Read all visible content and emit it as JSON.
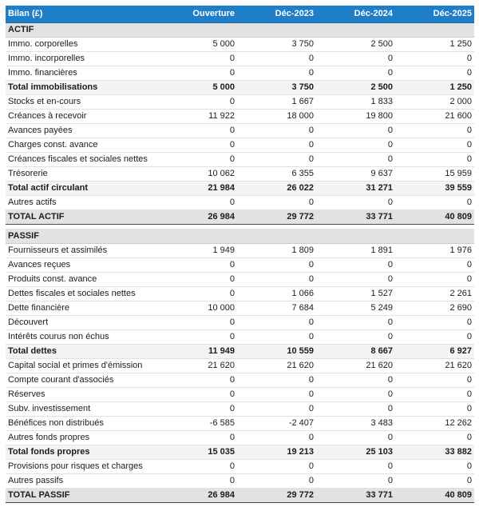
{
  "chart_data": {
    "type": "table",
    "title": "Bilan (£)",
    "currency": "£",
    "columns": [
      "Ouverture",
      "Déc-2023",
      "Déc-2024",
      "Déc-2025"
    ],
    "colors": {
      "header_bg": "#1e7ec8",
      "header_text": "#ffffff",
      "section_bg": "#e2e2e2",
      "total_bg": "#f4f4f4",
      "grandtotal_bg": "#e2e2e2",
      "dark_border": "#4d4d4d",
      "light_border": "#e2e2e2"
    },
    "sections": [
      {
        "name": "ACTIF",
        "rows": [
          {
            "label": "Immo. corporelles",
            "values": [
              5000,
              3750,
              2500,
              1250
            ],
            "style": "normal"
          },
          {
            "label": "Immo. incorporelles",
            "values": [
              0,
              0,
              0,
              0
            ],
            "style": "normal"
          },
          {
            "label": "Immo. financières",
            "values": [
              0,
              0,
              0,
              0
            ],
            "style": "normal"
          },
          {
            "label": "Total immobilisations",
            "values": [
              5000,
              3750,
              2500,
              1250
            ],
            "style": "total"
          },
          {
            "label": "Stocks et en-cours",
            "values": [
              0,
              1667,
              1833,
              2000
            ],
            "style": "normal"
          },
          {
            "label": "Créances à recevoir",
            "values": [
              11922,
              18000,
              19800,
              21600
            ],
            "style": "normal"
          },
          {
            "label": "Avances payées",
            "values": [
              0,
              0,
              0,
              0
            ],
            "style": "normal"
          },
          {
            "label": "Charges const. avance",
            "values": [
              0,
              0,
              0,
              0
            ],
            "style": "normal"
          },
          {
            "label": "Créances fiscales et sociales nettes",
            "values": [
              0,
              0,
              0,
              0
            ],
            "style": "normal"
          },
          {
            "label": "Trésorerie",
            "values": [
              10062,
              6355,
              9637,
              15959
            ],
            "style": "normal"
          },
          {
            "label": "Total actif circulant",
            "values": [
              21984,
              26022,
              31271,
              39559
            ],
            "style": "total"
          },
          {
            "label": "Autres actifs",
            "values": [
              0,
              0,
              0,
              0
            ],
            "style": "normal"
          },
          {
            "label": "TOTAL ACTIF",
            "values": [
              26984,
              29772,
              33771,
              40809
            ],
            "style": "grandtotal"
          }
        ]
      },
      {
        "name": "PASSIF",
        "rows": [
          {
            "label": "Fournisseurs et assimilés",
            "values": [
              1949,
              1809,
              1891,
              1976
            ],
            "style": "normal"
          },
          {
            "label": "Avances reçues",
            "values": [
              0,
              0,
              0,
              0
            ],
            "style": "normal"
          },
          {
            "label": "Produits const. avance",
            "values": [
              0,
              0,
              0,
              0
            ],
            "style": "normal"
          },
          {
            "label": "Dettes fiscales et sociales nettes",
            "values": [
              0,
              1066,
              1527,
              2261
            ],
            "style": "normal"
          },
          {
            "label": "Dette financière",
            "values": [
              10000,
              7684,
              5249,
              2690
            ],
            "style": "normal"
          },
          {
            "label": "Découvert",
            "values": [
              0,
              0,
              0,
              0
            ],
            "style": "normal"
          },
          {
            "label": "Intérêts courus non échus",
            "values": [
              0,
              0,
              0,
              0
            ],
            "style": "normal"
          },
          {
            "label": "Total dettes",
            "values": [
              11949,
              10559,
              8667,
              6927
            ],
            "style": "total"
          },
          {
            "label": "Capital social et primes d'émission",
            "values": [
              21620,
              21620,
              21620,
              21620
            ],
            "style": "normal"
          },
          {
            "label": "Compte courant d'associés",
            "values": [
              0,
              0,
              0,
              0
            ],
            "style": "normal"
          },
          {
            "label": "Réserves",
            "values": [
              0,
              0,
              0,
              0
            ],
            "style": "normal"
          },
          {
            "label": "Subv. investissement",
            "values": [
              0,
              0,
              0,
              0
            ],
            "style": "normal"
          },
          {
            "label": "Bénéfices non distribués",
            "values": [
              -6585,
              -2407,
              3483,
              12262
            ],
            "style": "normal"
          },
          {
            "label": "Autres fonds propres",
            "values": [
              0,
              0,
              0,
              0
            ],
            "style": "normal"
          },
          {
            "label": "Total fonds propres",
            "values": [
              15035,
              19213,
              25103,
              33882
            ],
            "style": "total"
          },
          {
            "label": "Provisions pour risques et charges",
            "values": [
              0,
              0,
              0,
              0
            ],
            "style": "normal"
          },
          {
            "label": "Autres passifs",
            "values": [
              0,
              0,
              0,
              0
            ],
            "style": "normal"
          },
          {
            "label": "TOTAL PASSIF",
            "values": [
              26984,
              29772,
              33771,
              40809
            ],
            "style": "grandtotal"
          }
        ]
      }
    ]
  }
}
